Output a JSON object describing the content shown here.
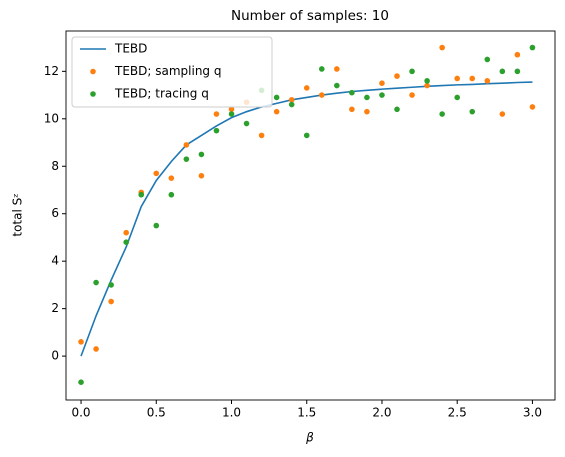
{
  "chart_data": {
    "type": "scatter",
    "title": "Number of samples: 10",
    "x_label": "β",
    "y_label": "total Sᶻ",
    "x": [
      0.0,
      0.1,
      0.2,
      0.3,
      0.4,
      0.5,
      0.6,
      0.7,
      0.8,
      0.9,
      1.0,
      1.1,
      1.2,
      1.3,
      1.4,
      1.5,
      1.6,
      1.7,
      1.8,
      1.9,
      2.0,
      2.1,
      2.2,
      2.3,
      2.4,
      2.5,
      2.6,
      2.7,
      2.8,
      2.9,
      3.0
    ],
    "series": [
      {
        "name": "TEBD",
        "color": "#1f77b4",
        "style": "line",
        "values": [
          0,
          1.7,
          3.2,
          4.6,
          6.3,
          7.4,
          8.2,
          8.9,
          9.3,
          9.7,
          10.05,
          10.3,
          10.5,
          10.65,
          10.8,
          10.9,
          11.0,
          11.08,
          11.15,
          11.2,
          11.25,
          11.29,
          11.33,
          11.37,
          11.4,
          11.43,
          11.45,
          11.48,
          11.5,
          11.53,
          11.55
        ]
      },
      {
        "name": "TEBD; sampling q",
        "color": "#ff7f0e",
        "style": "marker",
        "values": [
          0.6,
          0.3,
          2.3,
          5.2,
          6.9,
          7.7,
          7.5,
          8.9,
          7.6,
          10.2,
          10.4,
          10.7,
          9.3,
          10.3,
          10.8,
          11.3,
          11.0,
          12.1,
          10.4,
          10.3,
          11.5,
          11.8,
          11.0,
          11.4,
          13.0,
          11.7,
          11.7,
          11.6,
          10.2,
          12.7,
          10.5
        ]
      },
      {
        "name": "TEBD; tracing q",
        "color": "#2ca02c",
        "style": "marker",
        "values": [
          -1.1,
          3.1,
          3.0,
          4.8,
          6.8,
          5.5,
          6.8,
          8.3,
          8.5,
          9.5,
          10.2,
          9.8,
          11.2,
          10.9,
          10.6,
          9.3,
          12.1,
          11.4,
          11.1,
          10.9,
          11.0,
          10.4,
          12.0,
          11.6,
          10.2,
          10.9,
          10.3,
          12.5,
          12.0,
          12.0,
          13.0
        ]
      }
    ],
    "xlim": [
      -0.1,
      3.15
    ],
    "ylim": [
      -1.85,
      13.7
    ],
    "xticks": [
      {
        "value": 0,
        "label": "0.0"
      },
      {
        "value": 0.5,
        "label": "0.5"
      },
      {
        "value": 1,
        "label": "1.0"
      },
      {
        "value": 1.5,
        "label": "1.5"
      },
      {
        "value": 2,
        "label": "2.0"
      },
      {
        "value": 2.5,
        "label": "2.5"
      },
      {
        "value": 3,
        "label": "3.0"
      }
    ],
    "yticks": [
      0,
      2,
      4,
      6,
      8,
      10,
      12
    ],
    "legend": "upper left",
    "grid": false
  }
}
